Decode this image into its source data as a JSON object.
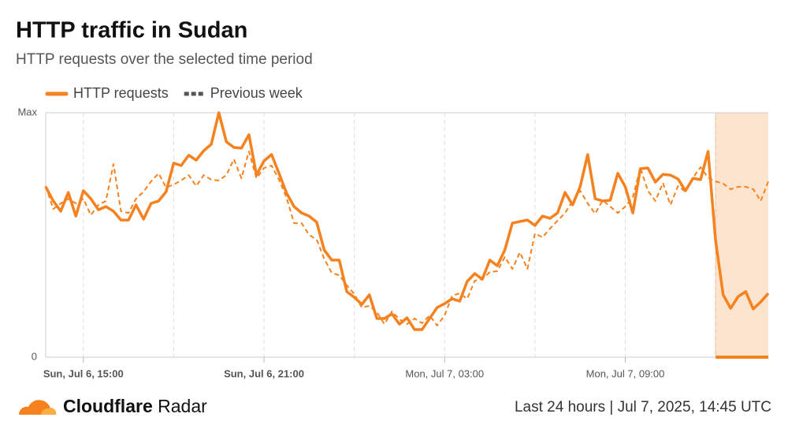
{
  "chart_data": {
    "type": "line",
    "title": "HTTP traffic in Sudan",
    "subtitle": "HTTP requests over the selected time period",
    "brand": {
      "name_bold": "Cloudflare",
      "name_light": "Radar"
    },
    "footer": "Last 24 hours | Jul 7, 2025, 14:45 UTC",
    "categories": [
      null,
      null,
      null,
      null,
      null,
      "Sun, Jul 6, 15:00",
      null,
      null,
      null,
      null,
      null,
      null,
      null,
      null,
      null,
      null,
      null,
      null,
      null,
      null,
      null,
      null,
      null,
      null,
      null,
      null,
      null,
      null,
      null,
      "Sun, Jul 6, 21:00",
      null,
      null,
      null,
      null,
      null,
      null,
      null,
      null,
      null,
      null,
      null,
      null,
      null,
      null,
      null,
      null,
      null,
      null,
      null,
      null,
      null,
      null,
      null,
      "Mon, Jul 7, 03:00",
      null,
      null,
      null,
      null,
      null,
      null,
      null,
      null,
      null,
      null,
      null,
      null,
      null,
      null,
      null,
      null,
      null,
      null,
      null,
      null,
      null,
      null,
      null,
      "Mon, Jul 7, 09:00",
      null,
      null,
      null,
      null,
      null,
      null,
      null,
      null,
      null,
      null,
      null,
      null,
      null,
      null,
      null,
      null,
      null,
      null,
      null
    ],
    "x_gridlines": [
      5,
      17,
      29,
      41,
      53,
      65,
      77,
      89
    ],
    "highlight": [
      89,
      96
    ],
    "ylim": [
      0,
      100
    ],
    "yticks": [
      0,
      {
        "value": 100,
        "label": "Max"
      }
    ],
    "series": [
      {
        "name": "HTTP requests",
        "color": "#f6821f",
        "dashed": false,
        "values": [
          69.7,
          63.9,
          59.7,
          67.4,
          57.7,
          68.1,
          64.8,
          60.3,
          61.6,
          59.7,
          56.1,
          56.1,
          62.3,
          56.5,
          62.9,
          63.9,
          67.7,
          79.4,
          78.4,
          82.6,
          80.6,
          84.5,
          87.1,
          100,
          88.1,
          85.8,
          85.5,
          91,
          74.5,
          80.3,
          82.9,
          75.2,
          67.1,
          61.6,
          59,
          57.7,
          55.2,
          43.9,
          39.7,
          39.7,
          26.8,
          24.5,
          21.6,
          25.5,
          15.8,
          15.8,
          17.7,
          13.5,
          16.1,
          11.3,
          11.3,
          15.8,
          20.3,
          21.9,
          23.9,
          22.9,
          31,
          34.2,
          31.9,
          39.7,
          37.4,
          43.9,
          54.8,
          55.5,
          56.1,
          53.9,
          57.7,
          56.8,
          59,
          67.4,
          62.3,
          69.7,
          82.9,
          64.8,
          63.9,
          64.2,
          75.2,
          69.7,
          59,
          77.1,
          77.4,
          71.6,
          74.8,
          74.5,
          72.9,
          68.1,
          73.2,
          72.6,
          84.2,
          47.7,
          25.5,
          20,
          24.8,
          26.8,
          19.7,
          22.6,
          26.1
        ]
      },
      {
        "name": "Previous week",
        "color": "#f6821f",
        "dashed": true,
        "values": [
          70,
          60.6,
          62.9,
          64.8,
          62.9,
          64.8,
          58.1,
          62.3,
          63.9,
          79,
          59.7,
          59,
          64.8,
          67.7,
          71.9,
          75.2,
          69.4,
          70.6,
          72.3,
          74.5,
          70,
          74.5,
          72.6,
          72.3,
          74.5,
          81,
          73.2,
          84.2,
          73.2,
          77.4,
          78.4,
          72.6,
          65.2,
          54.8,
          54.8,
          50,
          48.1,
          40.3,
          34.5,
          33.5,
          29.4,
          25.8,
          20.3,
          21,
          18.4,
          13.5,
          18.7,
          15.5,
          13.5,
          15.8,
          13.9,
          17.1,
          12.9,
          17.1,
          25.2,
          26.1,
          23.9,
          31.3,
          31.9,
          34.8,
          35.2,
          41,
          36.1,
          42.9,
          36.1,
          50.6,
          49,
          52.6,
          55.8,
          59,
          63.9,
          68.1,
          62.9,
          58.7,
          64.2,
          61.6,
          59,
          61.6,
          65.5,
          77.4,
          68.1,
          63.9,
          71.3,
          62.3,
          70,
          67.7,
          73.5,
          77.7,
          73.5,
          71.9,
          71,
          68.7,
          69.7,
          69.7,
          68.7,
          63.9,
          71.9
        ]
      }
    ]
  }
}
